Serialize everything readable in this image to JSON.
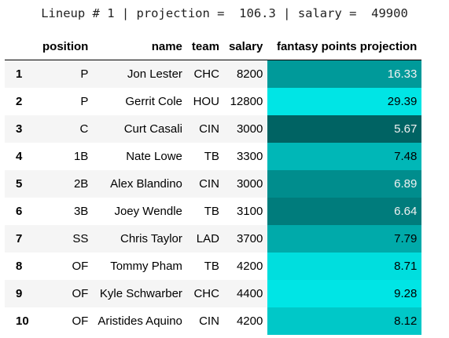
{
  "caption": "Lineup # 1 | projection =  106.3 | salary =  49900",
  "columns": [
    "",
    "position",
    "name",
    "team",
    "salary",
    "fantasy points projection"
  ],
  "rows": [
    {
      "idx": "1",
      "position": "P",
      "name": "Jon Lester",
      "team": "CHC",
      "salary": "8200",
      "proj": "16.33",
      "bg": "#009a9a",
      "fg": "#f1f1f1"
    },
    {
      "idx": "2",
      "position": "P",
      "name": "Gerrit Cole",
      "team": "HOU",
      "salary": "12800",
      "proj": "29.39",
      "bg": "#00e5e5",
      "fg": "#000000"
    },
    {
      "idx": "3",
      "position": "C",
      "name": "Curt Casali",
      "team": "CIN",
      "salary": "3000",
      "proj": "5.67",
      "bg": "#006363",
      "fg": "#f1f1f1"
    },
    {
      "idx": "4",
      "position": "1B",
      "name": "Nate Lowe",
      "team": "TB",
      "salary": "3300",
      "proj": "7.48",
      "bg": "#00b7b7",
      "fg": "#000000"
    },
    {
      "idx": "5",
      "position": "2B",
      "name": "Alex Blandino",
      "team": "CIN",
      "salary": "3000",
      "proj": "6.89",
      "bg": "#008d8d",
      "fg": "#f1f1f1"
    },
    {
      "idx": "6",
      "position": "3B",
      "name": "Joey Wendle",
      "team": "TB",
      "salary": "3100",
      "proj": "6.64",
      "bg": "#007c7c",
      "fg": "#f1f1f1"
    },
    {
      "idx": "7",
      "position": "SS",
      "name": "Chris Taylor",
      "team": "LAD",
      "salary": "3700",
      "proj": "7.79",
      "bg": "#00aaaa",
      "fg": "#000000"
    },
    {
      "idx": "8",
      "position": "OF",
      "name": "Tommy Pham",
      "team": "TB",
      "salary": "4200",
      "proj": "8.71",
      "bg": "#00dede",
      "fg": "#000000"
    },
    {
      "idx": "9",
      "position": "OF",
      "name": "Kyle Schwarber",
      "team": "CHC",
      "salary": "4400",
      "proj": "9.28",
      "bg": "#00e5e5",
      "fg": "#000000"
    },
    {
      "idx": "10",
      "position": "OF",
      "name": "Aristides Aquino",
      "team": "CIN",
      "salary": "4200",
      "proj": "8.12",
      "bg": "#00c8c8",
      "fg": "#000000"
    }
  ]
}
